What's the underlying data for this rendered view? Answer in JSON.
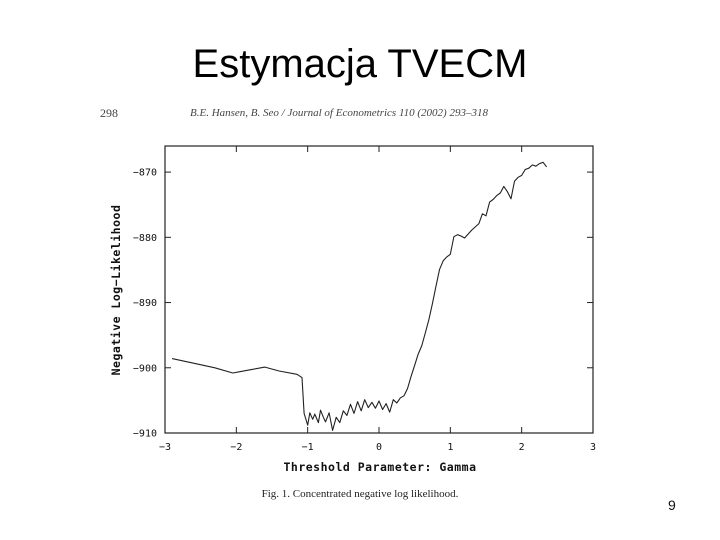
{
  "slide": {
    "title": "Estymacja TVECM",
    "slide_number": "9"
  },
  "figure": {
    "page_number": "298",
    "header": "B.E. Hansen, B. Seo / Journal of Econometrics 110 (2002) 293–318",
    "caption": "Fig. 1. Concentrated negative log likelihood."
  },
  "chart_data": {
    "type": "line",
    "title": "",
    "xlabel": "Threshold Parameter: Gamma",
    "ylabel": "Negative Log−Likelihood",
    "xlim": [
      -3,
      3
    ],
    "ylim": [
      -910,
      -866
    ],
    "xticks": [
      -3,
      -2,
      -1,
      0,
      1,
      2,
      3
    ],
    "yticks": [
      -870,
      -880,
      -890,
      -900,
      -910
    ],
    "xtick_labels": [
      "−3",
      "−2",
      "−1",
      "0",
      "1",
      "2",
      "3"
    ],
    "ytick_labels": [
      "−870",
      "−880",
      "−890",
      "−900",
      "−910"
    ],
    "grid": false,
    "series": [
      {
        "color": "#222222",
        "x": [
          -2.9,
          -2.6,
          -2.3,
          -2.05,
          -1.95,
          -1.8,
          -1.6,
          -1.4,
          -1.15,
          -1.08,
          -1.05,
          -1.0,
          -0.97,
          -0.93,
          -0.9,
          -0.85,
          -0.82,
          -0.78,
          -0.75,
          -0.7,
          -0.65,
          -0.6,
          -0.55,
          -0.5,
          -0.45,
          -0.4,
          -0.35,
          -0.3,
          -0.25,
          -0.2,
          -0.15,
          -0.1,
          -0.05,
          0.0,
          0.05,
          0.1,
          0.15,
          0.2,
          0.25,
          0.3,
          0.35,
          0.4,
          0.45,
          0.5,
          0.55,
          0.6,
          0.65,
          0.7,
          0.75,
          0.8,
          0.85,
          0.9,
          0.95,
          1.0,
          1.05,
          1.1,
          1.15,
          1.2,
          1.3,
          1.4,
          1.45,
          1.5,
          1.55,
          1.6,
          1.65,
          1.7,
          1.75,
          1.8,
          1.85,
          1.9,
          1.95,
          2.0,
          2.05,
          2.1,
          2.15,
          2.2,
          2.25,
          2.3,
          2.35
        ],
        "y": [
          -898.6,
          -899.3,
          -900.0,
          -900.8,
          -900.6,
          -900.3,
          -899.9,
          -900.5,
          -901.0,
          -901.5,
          -907.0,
          -908.8,
          -906.9,
          -907.9,
          -907.1,
          -908.4,
          -906.5,
          -907.6,
          -908.3,
          -906.9,
          -909.6,
          -907.6,
          -908.4,
          -906.6,
          -907.3,
          -905.6,
          -907.0,
          -905.2,
          -906.6,
          -904.9,
          -906.1,
          -905.3,
          -906.2,
          -905.1,
          -906.4,
          -905.5,
          -906.8,
          -904.9,
          -905.4,
          -904.6,
          -904.3,
          -903.2,
          -901.3,
          -899.6,
          -897.9,
          -896.6,
          -894.6,
          -892.6,
          -890.1,
          -887.4,
          -884.9,
          -883.6,
          -883.0,
          -882.6,
          -879.9,
          -879.6,
          -879.8,
          -880.1,
          -878.9,
          -877.9,
          -876.4,
          -876.7,
          -874.6,
          -874.2,
          -873.6,
          -873.2,
          -872.2,
          -873.0,
          -874.1,
          -871.4,
          -870.8,
          -870.5,
          -869.6,
          -869.4,
          -868.9,
          -869.1,
          -868.7,
          -868.5,
          -869.2
        ]
      }
    ]
  }
}
